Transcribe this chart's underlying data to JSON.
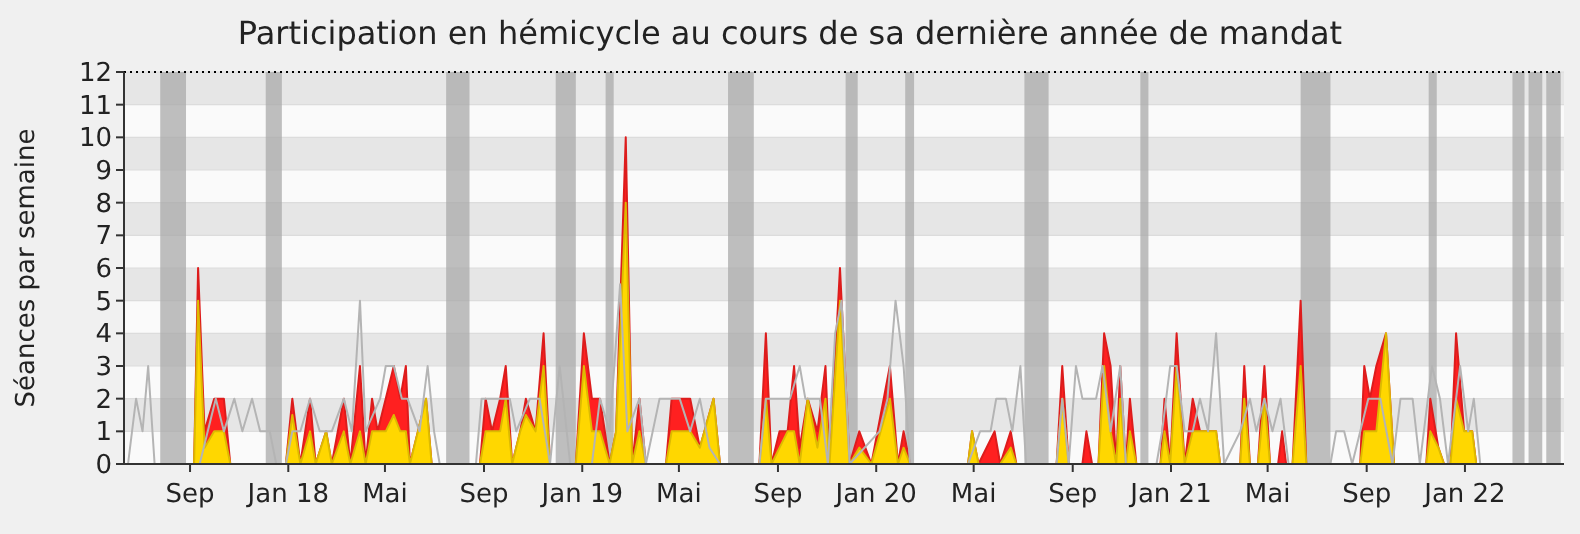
{
  "chart_data": {
    "type": "area",
    "title": "Participation en hémicycle au cours de sa dernière année de mandat",
    "ylabel": "Séances par semaine",
    "xlim": [
      "2017-06-11",
      "2022-05-04"
    ],
    "xticks": [
      {
        "value": "2017-09-01",
        "label": "Sep"
      },
      {
        "value": "2018-01-01",
        "label": "Jan 18"
      },
      {
        "value": "2018-05-01",
        "label": "Mai"
      },
      {
        "value": "2018-09-01",
        "label": "Sep"
      },
      {
        "value": "2019-01-01",
        "label": "Jan 19"
      },
      {
        "value": "2019-05-01",
        "label": "Mai"
      },
      {
        "value": "2019-09-01",
        "label": "Sep"
      },
      {
        "value": "2020-01-01",
        "label": "Jan 20"
      },
      {
        "value": "2020-05-01",
        "label": "Mai"
      },
      {
        "value": "2020-09-01",
        "label": "Sep"
      },
      {
        "value": "2021-01-01",
        "label": "Jan 21"
      },
      {
        "value": "2021-05-01",
        "label": "Mai"
      },
      {
        "value": "2021-09-01",
        "label": "Sep"
      },
      {
        "value": "2022-01-01",
        "label": "Jan 22"
      }
    ],
    "ylim": [
      0,
      12
    ],
    "yticks": [
      0,
      1,
      2,
      3,
      4,
      5,
      6,
      7,
      8,
      9,
      10,
      11,
      12
    ],
    "grid": "y",
    "legend": false,
    "bands": [
      {
        "axis": "x",
        "from": "2017-07-26",
        "to": "2017-08-27",
        "color": "#aaaaaa"
      },
      {
        "axis": "x",
        "from": "2017-12-04",
        "to": "2017-12-24",
        "color": "#aaaaaa"
      },
      {
        "axis": "x",
        "from": "2018-07-16",
        "to": "2018-08-14",
        "color": "#aaaaaa"
      },
      {
        "axis": "x",
        "from": "2018-11-29",
        "to": "2018-12-24",
        "color": "#aaaaaa"
      },
      {
        "axis": "x",
        "from": "2019-01-30",
        "to": "2019-02-09",
        "color": "#aaaaaa"
      },
      {
        "axis": "x",
        "from": "2019-07-01",
        "to": "2019-08-02",
        "color": "#aaaaaa"
      },
      {
        "axis": "x",
        "from": "2019-11-24",
        "to": "2019-12-09",
        "color": "#aaaaaa"
      },
      {
        "axis": "x",
        "from": "2020-02-06",
        "to": "2020-02-17",
        "color": "#aaaaaa"
      },
      {
        "axis": "x",
        "from": "2020-07-03",
        "to": "2020-08-02",
        "color": "#aaaaaa"
      },
      {
        "axis": "x",
        "from": "2020-11-24",
        "to": "2020-12-04",
        "color": "#aaaaaa"
      },
      {
        "axis": "x",
        "from": "2021-06-11",
        "to": "2021-07-18",
        "color": "#aaaaaa"
      },
      {
        "axis": "x",
        "from": "2021-11-17",
        "to": "2021-11-27",
        "color": "#aaaaaa"
      },
      {
        "axis": "x",
        "from": "2022-03-01",
        "to": "2022-03-16",
        "color": "#aaaaaa"
      },
      {
        "axis": "x",
        "from": "2022-03-21",
        "to": "2022-04-07",
        "color": "#aaaaaa"
      },
      {
        "axis": "x",
        "from": "2022-04-12",
        "to": "2022-04-30",
        "color": "#aaaaaa"
      }
    ],
    "x": [
      "2017-09-06",
      "2017-09-11",
      "2017-09-19",
      "2017-10-01",
      "2017-10-13",
      "2017-10-21",
      "2017-12-29",
      "2018-01-06",
      "2018-01-16",
      "2018-01-28",
      "2018-02-04",
      "2018-02-17",
      "2018-02-24",
      "2018-03-11",
      "2018-03-19",
      "2018-03-31",
      "2018-04-07",
      "2018-04-15",
      "2018-04-22",
      "2018-05-02",
      "2018-05-12",
      "2018-05-20",
      "2018-05-27",
      "2018-06-01",
      "2018-06-21",
      "2018-06-28",
      "2018-08-27",
      "2018-09-03",
      "2018-09-11",
      "2018-09-21",
      "2018-09-28",
      "2018-10-06",
      "2018-10-16",
      "2018-10-23",
      "2018-11-04",
      "2018-11-14",
      "2018-11-22",
      "2018-12-24",
      "2019-01-03",
      "2019-01-13",
      "2019-01-23",
      "2019-02-04",
      "2019-02-12",
      "2019-02-24",
      "2019-03-04",
      "2019-03-13",
      "2019-03-21",
      "2019-04-15",
      "2019-04-22",
      "2019-05-15",
      "2019-05-27",
      "2019-06-13",
      "2019-06-21",
      "2019-08-09",
      "2019-08-17",
      "2019-08-24",
      "2019-09-03",
      "2019-09-13",
      "2019-09-21",
      "2019-09-28",
      "2019-10-08",
      "2019-10-20",
      "2019-10-30",
      "2019-11-04",
      "2019-11-17",
      "2019-11-29",
      "2019-12-11",
      "2019-12-26",
      "2020-01-18",
      "2020-01-28",
      "2020-02-04",
      "2020-02-12",
      "2020-04-24",
      "2020-04-29",
      "2020-05-07",
      "2020-05-27",
      "2020-06-03",
      "2020-06-16",
      "2020-06-23",
      "2020-08-12",
      "2020-08-19",
      "2020-08-27",
      "2020-09-13",
      "2020-09-18",
      "2020-09-25",
      "2020-10-03",
      "2020-10-10",
      "2020-10-18",
      "2020-10-25",
      "2020-10-30",
      "2020-11-06",
      "2020-11-11",
      "2020-11-19",
      "2020-12-19",
      "2020-12-24",
      "2020-12-31",
      "2021-01-08",
      "2021-01-18",
      "2021-01-28",
      "2021-02-06",
      "2021-02-26",
      "2021-03-03",
      "2021-03-28",
      "2021-04-02",
      "2021-04-09",
      "2021-04-19",
      "2021-04-27",
      "2021-05-04",
      "2021-05-14",
      "2021-05-19",
      "2021-05-24",
      "2021-06-01",
      "2021-06-11",
      "2021-06-18",
      "2021-08-24",
      "2021-08-29",
      "2021-09-05",
      "2021-09-13",
      "2021-09-25",
      "2021-10-05",
      "2021-11-14",
      "2021-11-19",
      "2021-11-29",
      "2021-12-06",
      "2021-12-14",
      "2021-12-21",
      "2021-12-31",
      "2022-01-10",
      "2022-01-15",
      "2022-05-04"
    ],
    "series": [
      {
        "type": "line",
        "color": "#b4b4b4",
        "x": [
          "2017-06-16",
          "2017-06-26",
          "2017-07-04",
          "2017-07-11",
          "2017-07-19",
          "2017-09-13",
          "2017-09-23",
          "2017-10-03",
          "2017-10-13",
          "2017-10-26",
          "2017-11-05",
          "2017-11-17",
          "2017-11-27",
          "2017-12-09",
          "2017-12-17",
          "2017-12-29",
          "2018-01-06",
          "2018-01-16",
          "2018-01-28",
          "2018-02-09",
          "2018-02-24",
          "2018-03-11",
          "2018-03-21",
          "2018-03-31",
          "2018-04-07",
          "2018-04-25",
          "2018-05-02",
          "2018-05-12",
          "2018-05-22",
          "2018-05-29",
          "2018-06-13",
          "2018-06-23",
          "2018-07-01",
          "2018-07-08",
          "2018-08-22",
          "2018-08-29",
          "2018-09-08",
          "2018-10-03",
          "2018-10-11",
          "2018-10-28",
          "2018-11-09",
          "2018-11-22",
          "2018-12-04",
          "2018-12-17",
          "2019-01-13",
          "2019-01-23",
          "2019-02-04",
          "2019-02-17",
          "2019-02-26",
          "2019-03-13",
          "2019-03-21",
          "2019-04-07",
          "2019-05-02",
          "2019-05-15",
          "2019-05-27",
          "2019-06-08",
          "2019-06-21",
          "2019-08-09",
          "2019-08-17",
          "2019-09-03",
          "2019-09-16",
          "2019-09-28",
          "2019-10-05",
          "2019-10-23",
          "2019-11-02",
          "2019-11-11",
          "2019-11-19",
          "2019-11-29",
          "2020-01-05",
          "2020-01-15",
          "2020-01-25",
          "2020-02-04",
          "2020-02-12",
          "2020-04-24",
          "2020-05-09",
          "2020-05-22",
          "2020-05-29",
          "2020-06-10",
          "2020-06-18",
          "2020-06-28",
          "2020-07-05",
          "2020-08-12",
          "2020-08-19",
          "2020-08-27",
          "2020-09-05",
          "2020-09-13",
          "2020-09-30",
          "2020-10-08",
          "2020-10-18",
          "2020-10-30",
          "2020-11-06",
          "2020-12-14",
          "2020-12-21",
          "2020-12-31",
          "2021-01-08",
          "2021-01-18",
          "2021-01-28",
          "2021-02-06",
          "2021-02-16",
          "2021-02-26",
          "2021-03-08",
          "2021-03-28",
          "2021-04-09",
          "2021-04-17",
          "2021-04-27",
          "2021-05-07",
          "2021-05-17",
          "2021-05-27",
          "2021-07-18",
          "2021-07-25",
          "2021-08-04",
          "2021-08-14",
          "2021-09-03",
          "2021-09-18",
          "2021-10-03",
          "2021-10-13",
          "2021-10-28",
          "2021-11-06",
          "2021-11-21",
          "2021-12-01",
          "2021-12-11",
          "2021-12-26",
          "2022-01-05",
          "2022-01-12",
          "2022-01-20"
        ],
        "values": [
          0,
          2,
          1,
          3,
          0,
          0,
          1,
          2,
          1,
          2,
          1,
          2,
          1,
          1,
          0,
          0,
          1,
          1,
          2,
          1,
          1,
          2,
          1,
          5,
          1,
          2,
          3,
          3,
          2,
          2,
          1,
          3,
          1,
          0,
          0,
          2,
          2,
          2,
          1,
          2,
          2,
          0,
          3,
          0,
          0,
          2,
          1,
          5.5,
          1,
          2,
          0,
          2,
          2,
          1,
          2,
          0.5,
          0,
          0,
          2,
          2,
          2,
          3,
          2,
          2,
          0,
          4,
          5,
          0,
          1,
          2,
          5,
          3,
          0,
          0,
          1,
          1,
          2,
          2,
          1,
          3,
          0,
          0,
          2,
          0,
          3,
          2,
          2,
          3,
          1,
          3,
          0,
          0,
          1,
          3,
          3,
          1,
          1,
          2,
          1,
          4,
          0,
          1,
          2,
          1,
          2,
          1,
          2,
          0,
          0,
          1,
          1,
          0,
          2,
          2,
          0,
          2,
          2,
          0,
          3,
          2,
          0,
          3,
          1,
          2,
          0
        ]
      },
      {
        "color": "#ff2020",
        "values": [
          0,
          6,
          1,
          2,
          2,
          0,
          0,
          2,
          0,
          2,
          0,
          1,
          0,
          2,
          0,
          3,
          0,
          2,
          1,
          2,
          3,
          2,
          3,
          0,
          2,
          0,
          0,
          2,
          1,
          2,
          3,
          0,
          1,
          2,
          1,
          4,
          0,
          0,
          4,
          2,
          2,
          0,
          1,
          10,
          0,
          2,
          0,
          0,
          2,
          2,
          0.5,
          2,
          0,
          0,
          4,
          0,
          1,
          1,
          3,
          0.5,
          2,
          1,
          3,
          0,
          6,
          0,
          1,
          0,
          3,
          0,
          1,
          0,
          0,
          1,
          0,
          1,
          0,
          1,
          0,
          0,
          3,
          0,
          0,
          1,
          0,
          0,
          4,
          3,
          0,
          3,
          0,
          2,
          0,
          0,
          2,
          0,
          4,
          0,
          2,
          1,
          1,
          0,
          0,
          3,
          0,
          0,
          3,
          0,
          0,
          1,
          0,
          0,
          5,
          0,
          0,
          3,
          2,
          3,
          4,
          0,
          0,
          2,
          0.5,
          0,
          0,
          4,
          1,
          1,
          0,
          0
        ]
      },
      {
        "color": "#ffd700",
        "values": [
          0,
          5,
          0.5,
          1,
          1,
          0,
          0,
          1.5,
          0,
          1,
          0,
          1,
          0,
          1,
          0,
          1,
          0,
          1,
          1,
          1,
          1.5,
          1,
          1,
          0,
          2,
          0,
          0,
          1,
          1,
          1,
          2,
          0,
          1,
          1.5,
          1,
          3,
          0,
          0,
          3,
          1,
          1,
          0,
          1,
          8,
          0,
          1,
          0,
          0,
          1,
          1,
          0.5,
          2,
          0,
          0,
          2,
          0,
          0.5,
          1,
          1,
          0,
          2,
          0.5,
          2,
          0,
          5,
          0,
          0.5,
          0,
          2,
          0,
          0.5,
          0,
          0,
          1,
          0,
          0,
          0,
          0.5,
          0,
          0,
          2,
          0,
          0,
          0,
          0,
          0,
          3,
          1,
          0,
          2,
          0,
          1,
          0,
          0,
          1,
          0,
          3,
          0,
          1,
          1,
          1,
          0,
          0,
          2,
          0,
          0,
          2,
          0,
          0,
          0,
          0,
          0,
          3,
          0,
          0,
          1,
          1,
          1,
          4,
          0,
          0,
          1,
          0.5,
          0,
          0,
          2,
          1,
          1,
          0,
          0
        ]
      }
    ]
  }
}
